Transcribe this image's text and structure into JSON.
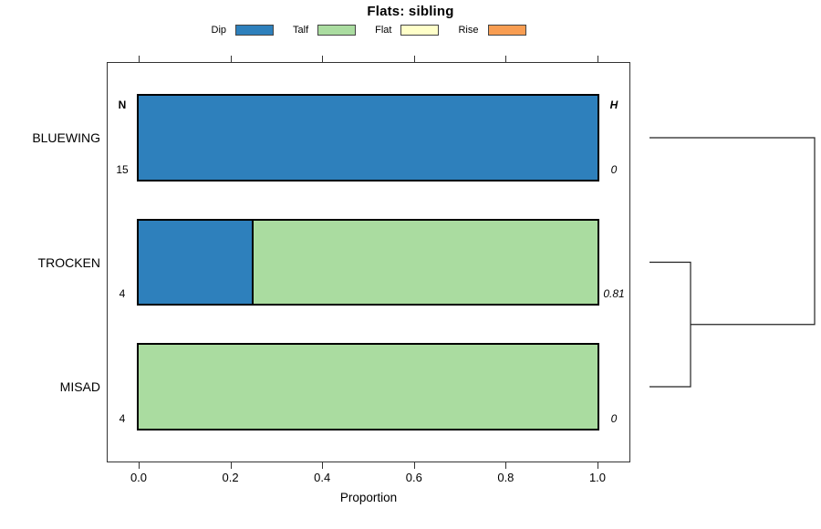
{
  "chart_data": {
    "type": "bar",
    "orientation": "horizontal",
    "stacked": true,
    "title": "Flats: sibling",
    "xlabel": "Proportion",
    "xlim": [
      0,
      1
    ],
    "x_ticks": [
      "0.0",
      "0.2",
      "0.4",
      "0.6",
      "0.8",
      "1.0"
    ],
    "x_tick_values": [
      0,
      0.2,
      0.4,
      0.6,
      0.8,
      1.0
    ],
    "grid": false,
    "legend_position": "top",
    "categories": [
      "BLUEWING",
      "TROCKEN",
      "MISAD"
    ],
    "n_header": "N",
    "h_header": "H",
    "n_values": [
      "15",
      "4",
      "4"
    ],
    "h_values": [
      "0",
      "0.81",
      "0"
    ],
    "series": [
      {
        "name": "Dip",
        "color": "#2E80BC",
        "values": [
          1.0,
          0.25,
          0
        ]
      },
      {
        "name": "Talf",
        "color": "#AADCA0",
        "values": [
          0,
          0.75,
          1.0
        ]
      },
      {
        "name": "Flat",
        "color": "#FFFFC9",
        "values": [
          0,
          0,
          0
        ]
      },
      {
        "name": "Rise",
        "color": "#F89D52",
        "values": [
          0,
          0,
          0
        ]
      }
    ],
    "legend": [
      {
        "label": "Dip",
        "color": "#2E80BC"
      },
      {
        "label": "Talf",
        "color": "#AADCA0"
      },
      {
        "label": "Flat",
        "color": "#FFFFC9"
      },
      {
        "label": "Rise",
        "color": "#F89D52"
      }
    ],
    "dendrogram": {
      "present": true,
      "position": "right",
      "merges": [
        {
          "members": [
            "TROCKEN",
            "MISAD"
          ],
          "height_label": "0.81"
        },
        {
          "members": [
            "BLUEWING",
            "TROCKEN+MISAD"
          ],
          "height_label": ""
        }
      ]
    }
  }
}
